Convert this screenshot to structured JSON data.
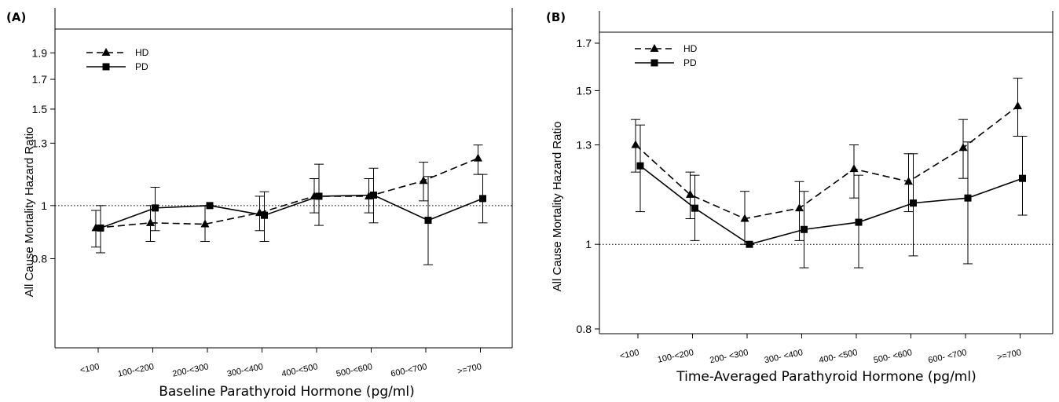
{
  "chart_data": [
    {
      "panel": "(A)",
      "type": "line",
      "scale": "log",
      "ylabel": "All Cause Mortality Hazard Ratio",
      "xlabel": "Baseline Parathyroid Hormone (pg/ml)",
      "categories": [
        "<100",
        "100-<200",
        "200-<300",
        "300-<400",
        "400-<500",
        "500-<600",
        "600-<700",
        ">=700"
      ],
      "yticks": [
        "0.8",
        "1",
        "1.3",
        "1.5",
        "1.7",
        "1.9"
      ],
      "ylim": [
        0.55,
        2.1
      ],
      "reference_line": 1,
      "legend": [
        "HD",
        "PD"
      ],
      "series": [
        {
          "name": "HD",
          "marker": "triangle",
          "line": "dashed",
          "values": [
            0.91,
            0.93,
            0.925,
            0.97,
            1.04,
            1.04,
            1.11,
            1.22
          ],
          "lower": [
            0.84,
            0.86,
            0.86,
            0.9,
            0.97,
            0.97,
            1.02,
            1.14
          ],
          "upper": [
            0.98,
            1.0,
            1.0,
            1.04,
            1.12,
            1.12,
            1.2,
            1.29
          ]
        },
        {
          "name": "PD",
          "marker": "square",
          "line": "solid",
          "values": [
            0.91,
            0.99,
            1.0,
            0.96,
            1.04,
            1.045,
            0.94,
            1.03
          ],
          "lower": [
            0.82,
            0.9,
            1.0,
            0.86,
            0.92,
            0.93,
            0.78,
            0.93
          ],
          "upper": [
            1.0,
            1.08,
            1.0,
            1.06,
            1.19,
            1.17,
            1.13,
            1.14
          ]
        }
      ]
    },
    {
      "panel": "(B)",
      "type": "line",
      "scale": "log",
      "ylabel": "All Cause Mortality Hazard Ratio",
      "xlabel": "Time-Averaged Parathyroid Hormone (pg/ml)",
      "categories": [
        "<100",
        "100-<200",
        "200- <300",
        "300- <400",
        "400- <500",
        "500- <600",
        "600- <700",
        ">=700"
      ],
      "yticks": [
        "0.8",
        "1",
        "1.3",
        "1.5",
        "1.7"
      ],
      "ylim": [
        0.79,
        1.75
      ],
      "reference_line": 1,
      "legend": [
        "HD",
        "PD"
      ],
      "series": [
        {
          "name": "HD",
          "marker": "triangle",
          "line": "dashed",
          "values": [
            1.3,
            1.14,
            1.07,
            1.1,
            1.22,
            1.18,
            1.29,
            1.44
          ],
          "lower": [
            1.21,
            1.07,
            1.0,
            1.01,
            1.13,
            1.09,
            1.19,
            1.33
          ],
          "upper": [
            1.39,
            1.21,
            1.15,
            1.18,
            1.3,
            1.27,
            1.39,
            1.55
          ]
        },
        {
          "name": "PD",
          "marker": "square",
          "line": "solid",
          "values": [
            1.23,
            1.1,
            1.0,
            1.04,
            1.06,
            1.115,
            1.13,
            1.19
          ],
          "lower": [
            1.09,
            1.01,
            1.0,
            0.94,
            0.94,
            0.97,
            0.95,
            1.08
          ],
          "upper": [
            1.37,
            1.2,
            1.0,
            1.15,
            1.2,
            1.27,
            1.31,
            1.33
          ]
        }
      ]
    }
  ]
}
